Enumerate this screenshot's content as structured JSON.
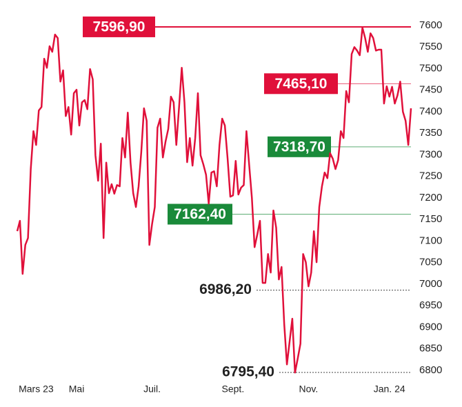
{
  "chart_data": {
    "type": "line",
    "series": [
      {
        "color": "#e0103a",
        "values": [
          7123,
          7147,
          7024,
          7091,
          7107,
          7267,
          7355,
          7323,
          7403,
          7411,
          7523,
          7502,
          7552,
          7539,
          7579,
          7571,
          7470,
          7496,
          7390,
          7411,
          7347,
          7443,
          7451,
          7368,
          7422,
          7427,
          7406,
          7499,
          7475,
          7299,
          7240,
          7326,
          7107,
          7282,
          7211,
          7232,
          7210,
          7230,
          7227,
          7339,
          7294,
          7398,
          7282,
          7211,
          7179,
          7227,
          7307,
          7408,
          7379,
          7091,
          7139,
          7179,
          7363,
          7384,
          7294,
          7331,
          7360,
          7435,
          7422,
          7323,
          7411,
          7502,
          7422,
          7283,
          7339,
          7275,
          7339,
          7443,
          7299,
          7278,
          7254,
          7187,
          7259,
          7262,
          7227,
          7323,
          7384,
          7368,
          7291,
          7203,
          7206,
          7286,
          7208,
          7224,
          7230,
          7355,
          7278,
          7200,
          7086,
          7115,
          7147,
          7003,
          7003,
          7070,
          7027,
          7171,
          7131,
          7011,
          7040,
          6907,
          6814,
          6867,
          6920,
          6795,
          6827,
          6862,
          7070,
          7051,
          6995,
          7027,
          7123,
          7051,
          7179,
          7227,
          7259,
          7246,
          7304,
          7291,
          7267,
          7288,
          7355,
          7339,
          7448,
          7422,
          7534,
          7550,
          7542,
          7531,
          7595,
          7571,
          7539,
          7582,
          7571,
          7542,
          7544,
          7544,
          7419,
          7459,
          7435,
          7458,
          7419,
          7438,
          7470,
          7400,
          7379,
          7323,
          7408
        ]
      }
    ],
    "xticks": [
      {
        "value": 7,
        "label": "Mars 23"
      },
      {
        "value": 22,
        "label": "Mai"
      },
      {
        "value": 50,
        "label": "Juil."
      },
      {
        "value": 80,
        "label": "Sept."
      },
      {
        "value": 108,
        "label": "Nov."
      },
      {
        "value": 138,
        "label": "Jan. 24"
      }
    ],
    "ylim": [
      6770,
      7630
    ],
    "yticks": [
      6800,
      6850,
      6900,
      6950,
      7000,
      7050,
      7100,
      7150,
      7200,
      7250,
      7300,
      7350,
      7400,
      7450,
      7500,
      7550,
      7600
    ],
    "annotations": [
      {
        "value": 7596.9,
        "label": "7596,90",
        "color": "#e0103a",
        "kind": "box"
      },
      {
        "value": 7465.1,
        "label": "7465,10",
        "color": "#e0103a",
        "kind": "box"
      },
      {
        "value": 7318.7,
        "label": "7318,70",
        "color": "#1a8a3a",
        "kind": "box"
      },
      {
        "value": 7162.4,
        "label": "7162,40",
        "color": "#1a8a3a",
        "kind": "box"
      },
      {
        "value": 6986.2,
        "label": "6986,20",
        "color": "#222222",
        "kind": "text"
      },
      {
        "value": 6795.4,
        "label": "6795,40",
        "color": "#222222",
        "kind": "text"
      }
    ]
  }
}
